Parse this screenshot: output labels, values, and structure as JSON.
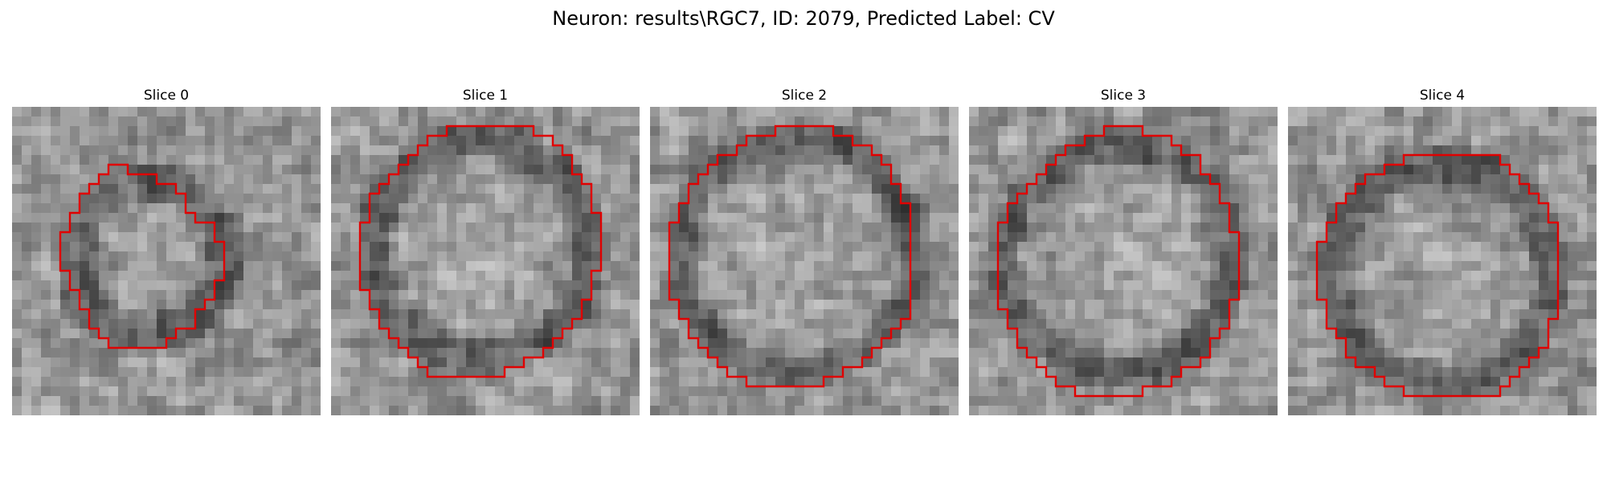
{
  "figure": {
    "title": "Neuron: results\\RGC7, ID: 2079, Predicted Label: CV"
  },
  "panels": [
    {
      "title": "Slice 0",
      "contour": "#e00000"
    },
    {
      "title": "Slice 1",
      "contour": "#e00000"
    },
    {
      "title": "Slice 2",
      "contour": "#e00000"
    },
    {
      "title": "Slice 3",
      "contour": "#e00000"
    },
    {
      "title": "Slice 4",
      "contour": "#e00000"
    }
  ],
  "colors": {
    "contour": "#e00000",
    "colormap": "grayscale"
  }
}
